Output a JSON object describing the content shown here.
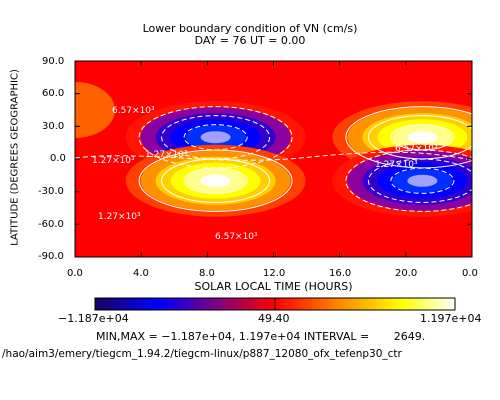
{
  "chart_data": {
    "type": "heatmap",
    "title": "Lower boundary condition of VN (cm/s)",
    "subtitle": "DAY =  76  UT =   0.00",
    "xlabel": "SOLAR LOCAL TIME (HOURS)",
    "ylabel": "LATITUDE (DEGREES GEOGRAPHIC)",
    "xlim": [
      0,
      24
    ],
    "ylim": [
      -90,
      90
    ],
    "x_ticks": [
      "0.0",
      "4.0",
      "8.0",
      "12.0",
      "16.0",
      "20.0",
      "0.0"
    ],
    "y_ticks": [
      "90.0",
      "60.0",
      "30.0",
      "0.0",
      "-30.0",
      "-60.0",
      "-90.0"
    ],
    "colorbar": {
      "min_label": "−1.187e+04",
      "mid_label": "49.40",
      "max_label": "1.197e+04",
      "stops": [
        "#1a0060",
        "#0000ff",
        "#ff0000",
        "#ff8800",
        "#ffff00",
        "#ffffff"
      ]
    },
    "contour_labels": [
      "6.57×10³",
      "1.27×10³",
      "1.27×10³",
      "6.57×10³",
      "1.27×10³",
      "1.27×10³",
      "6.57×10³"
    ],
    "features": [
      {
        "sign": "neg",
        "x": 8.5,
        "y": 20,
        "amplitude": 11870
      },
      {
        "sign": "pos",
        "x": 8.5,
        "y": -20,
        "amplitude": 11970
      },
      {
        "sign": "pos",
        "x": 21,
        "y": 20,
        "amplitude": 11970
      },
      {
        "sign": "neg",
        "x": 21,
        "y": -20,
        "amplitude": 11870
      }
    ],
    "min": -11870,
    "max": 11970,
    "interval": 2649
  },
  "footer": {
    "minmax_line": "MIN,MAX = −1.187e+04, 1.197e+04 INTERVAL =       2649.",
    "path_line": "/hao/aim3/emery/tiegcm_1.94.2/tiegcm-linux/p887_12080_ofx_tefenp30_ctr"
  }
}
